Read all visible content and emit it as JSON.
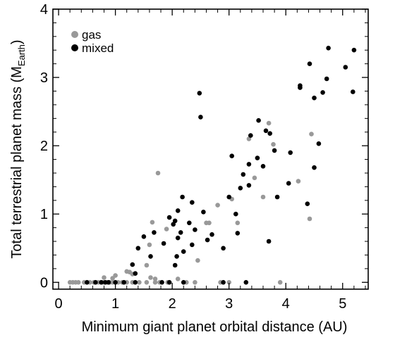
{
  "chart_data": {
    "type": "scatter",
    "xlabel": "Minimum giant planet orbital distance (AU)",
    "ylabel_main": "Total terrestrial planet mass (M",
    "ylabel_sub": "Earth",
    "ylabel_close": ")",
    "xlim": [
      -0.1,
      5.45
    ],
    "ylim": [
      -0.1,
      4.0
    ],
    "x_ticks": [
      0,
      1,
      2,
      3,
      4,
      5
    ],
    "y_ticks": [
      0,
      1,
      2,
      3,
      4
    ],
    "x_tick_labels": [
      "0",
      "1",
      "2",
      "3",
      "4",
      "5"
    ],
    "y_tick_labels": [
      "0",
      "1",
      "2",
      "3",
      "4"
    ],
    "legend_position": "top-left",
    "series": [
      {
        "name": "gas",
        "color": "#999999",
        "points": [
          [
            0.2,
            0
          ],
          [
            0.25,
            0
          ],
          [
            0.3,
            0
          ],
          [
            0.35,
            0
          ],
          [
            0.45,
            0
          ],
          [
            0.55,
            0
          ],
          [
            0.62,
            0
          ],
          [
            0.7,
            0
          ],
          [
            0.78,
            0
          ],
          [
            0.85,
            0
          ],
          [
            0.9,
            0
          ],
          [
            0.95,
            0
          ],
          [
            1.05,
            0
          ],
          [
            1.12,
            0
          ],
          [
            1.2,
            0
          ],
          [
            1.3,
            0
          ],
          [
            1.42,
            0
          ],
          [
            1.55,
            0
          ],
          [
            1.7,
            0
          ],
          [
            1.78,
            0
          ],
          [
            1.92,
            0
          ],
          [
            2.25,
            0
          ],
          [
            2.4,
            0
          ],
          [
            2.85,
            0
          ],
          [
            3.0,
            0
          ],
          [
            3.9,
            0
          ],
          [
            0.8,
            0.07
          ],
          [
            0.95,
            0.06
          ],
          [
            1.0,
            0.1
          ],
          [
            1.2,
            0.16
          ],
          [
            1.25,
            0.15
          ],
          [
            1.3,
            0.12
          ],
          [
            1.62,
            0.07
          ],
          [
            1.7,
            0.05
          ],
          [
            1.55,
            0.25
          ],
          [
            1.6,
            0.55
          ],
          [
            1.65,
            0.88
          ],
          [
            1.75,
            1.6
          ],
          [
            1.9,
            0.78
          ],
          [
            2.1,
            0.05
          ],
          [
            2.45,
            0.32
          ],
          [
            2.6,
            0.87
          ],
          [
            2.65,
            0.87
          ],
          [
            2.8,
            1.13
          ],
          [
            3.05,
            1.22
          ],
          [
            3.15,
            0.87
          ],
          [
            3.35,
            2.1
          ],
          [
            3.45,
            1.53
          ],
          [
            3.6,
            1.25
          ],
          [
            3.7,
            2.33
          ],
          [
            3.78,
            2.02
          ],
          [
            4.22,
            1.48
          ],
          [
            4.42,
            0.93
          ],
          [
            4.45,
            2.17
          ]
        ]
      },
      {
        "name": "mixed",
        "color": "#000000",
        "points": [
          [
            0.5,
            0
          ],
          [
            0.65,
            0
          ],
          [
            0.75,
            0
          ],
          [
            0.82,
            0
          ],
          [
            0.88,
            0
          ],
          [
            1.0,
            0
          ],
          [
            1.15,
            0
          ],
          [
            1.35,
            0
          ],
          [
            1.82,
            0
          ],
          [
            1.95,
            0
          ],
          [
            2.2,
            0
          ],
          [
            2.9,
            0
          ],
          [
            3.3,
            0
          ],
          [
            1.3,
            0.26
          ],
          [
            1.35,
            0.13
          ],
          [
            1.4,
            0.5
          ],
          [
            1.5,
            0.67
          ],
          [
            1.62,
            0.38
          ],
          [
            1.68,
            0.73
          ],
          [
            1.85,
            0.57
          ],
          [
            1.95,
            0.95
          ],
          [
            2.02,
            0.85
          ],
          [
            2.05,
            0.25
          ],
          [
            2.05,
            0.9
          ],
          [
            2.08,
            0.38
          ],
          [
            2.1,
            0.65
          ],
          [
            2.1,
            1.05
          ],
          [
            2.15,
            0.73
          ],
          [
            2.18,
            1.25
          ],
          [
            2.2,
            0.45
          ],
          [
            2.3,
            0.87
          ],
          [
            2.35,
            1.17
          ],
          [
            2.35,
            0.55
          ],
          [
            2.4,
            0.77
          ],
          [
            2.48,
            2.77
          ],
          [
            2.5,
            2.42
          ],
          [
            2.55,
            1.03
          ],
          [
            2.62,
            0.62
          ],
          [
            2.7,
            0.7
          ],
          [
            2.9,
            0.5
          ],
          [
            3.0,
            1.25
          ],
          [
            3.05,
            1.85
          ],
          [
            3.12,
            1.0
          ],
          [
            3.15,
            0.72
          ],
          [
            3.2,
            1.38
          ],
          [
            3.25,
            1.58
          ],
          [
            3.35,
            1.42
          ],
          [
            3.35,
            1.73
          ],
          [
            3.38,
            2.15
          ],
          [
            3.5,
            1.82
          ],
          [
            3.52,
            2.37
          ],
          [
            3.6,
            1.7
          ],
          [
            3.65,
            2.22
          ],
          [
            3.7,
            0.6
          ],
          [
            3.72,
            2.18
          ],
          [
            3.8,
            1.93
          ],
          [
            3.85,
            1.25
          ],
          [
            4.05,
            1.45
          ],
          [
            4.08,
            1.9
          ],
          [
            4.25,
            2.85
          ],
          [
            4.25,
            2.88
          ],
          [
            4.38,
            1.15
          ],
          [
            4.42,
            3.2
          ],
          [
            4.5,
            2.7
          ],
          [
            4.5,
            1.68
          ],
          [
            4.58,
            2.03
          ],
          [
            4.65,
            2.78
          ],
          [
            4.72,
            2.98
          ],
          [
            4.75,
            3.43
          ],
          [
            5.05,
            3.15
          ],
          [
            5.18,
            2.79
          ],
          [
            5.2,
            3.4
          ]
        ]
      }
    ]
  }
}
